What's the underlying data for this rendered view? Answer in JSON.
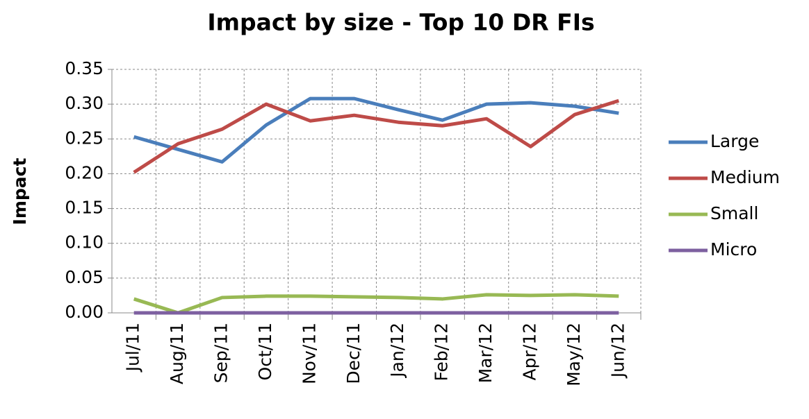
{
  "chart_data": {
    "type": "line",
    "title": "Impact by size - Top 10 DR FIs",
    "y_label": "Impact",
    "categories": [
      "Jul/11",
      "Aug/11",
      "Sep/11",
      "Oct/11",
      "Nov/11",
      "Dec/11",
      "Jan/12",
      "Feb/12",
      "Mar/12",
      "Apr/12",
      "May/12",
      "Jun/12"
    ],
    "series": [
      {
        "name": "Large",
        "color": "#4a7ebb",
        "values": [
          0.253,
          0.235,
          0.217,
          0.27,
          0.308,
          0.308,
          0.292,
          0.277,
          0.3,
          0.302,
          0.297,
          0.287
        ]
      },
      {
        "name": "Medium",
        "color": "#be4b48",
        "values": [
          0.202,
          0.243,
          0.264,
          0.3,
          0.276,
          0.284,
          0.274,
          0.269,
          0.279,
          0.239,
          0.285,
          0.305
        ]
      },
      {
        "name": "Small",
        "color": "#98b954",
        "values": [
          0.02,
          0.0,
          0.022,
          0.024,
          0.024,
          0.023,
          0.022,
          0.02,
          0.026,
          0.025,
          0.026,
          0.024
        ]
      },
      {
        "name": "Micro",
        "color": "#7d60a0",
        "values": [
          0,
          0,
          0,
          0,
          0,
          0,
          0,
          0,
          0,
          0,
          0,
          0
        ]
      }
    ],
    "ylim": [
      0,
      0.35
    ],
    "yticks": [
      {
        "value": 0,
        "label": "0.00"
      },
      0.05,
      {
        "value": 0.1,
        "label": "0.10"
      },
      0.15,
      {
        "value": 0.2,
        "label": "0.20"
      },
      0.25,
      {
        "value": 0.3,
        "label": "0.30"
      },
      0.35
    ],
    "grid": true,
    "legend": "right"
  }
}
